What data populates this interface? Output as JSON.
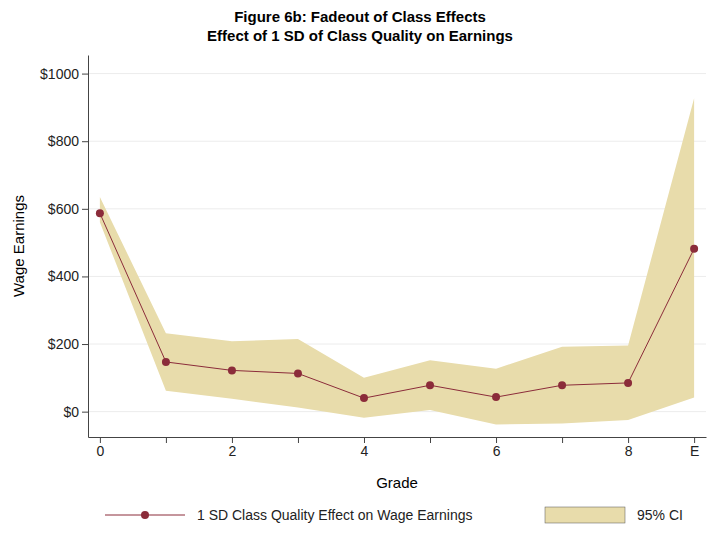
{
  "chart_data": {
    "type": "line",
    "title": "Figure 6b: Fadeout of Class Effects",
    "subtitle": "Effect of 1 SD of Class Quality on Earnings",
    "x_label": "Grade",
    "y_label": "Wage Earnings",
    "categories": [
      "0",
      null,
      "2",
      null,
      "4",
      null,
      "6",
      null,
      "8",
      "E"
    ],
    "series": [
      {
        "name": "1 SD Class Quality Effect on Wage Earnings",
        "color": "#8b2c3a",
        "marker": "circle",
        "line_style": "solid",
        "values": [
          587,
          147,
          122,
          113,
          40,
          78,
          43,
          78,
          85,
          482
        ]
      },
      {
        "name": "95% CI",
        "type": "band",
        "color": "#e8dcab",
        "lower": [
          560,
          62,
          38,
          12,
          -18,
          5,
          -38,
          -35,
          -25,
          42
        ],
        "upper": [
          635,
          232,
          208,
          215,
          100,
          152,
          127,
          192,
          196,
          927
        ]
      }
    ],
    "ylim": [
      -75,
      1055
    ],
    "yticks": [
      {
        "value": 0,
        "label": "$0"
      },
      {
        "value": 200,
        "label": "$200"
      },
      {
        "value": 400,
        "label": "$400"
      },
      {
        "value": 600,
        "label": "$600"
      },
      {
        "value": 800,
        "label": "$800"
      },
      {
        "value": 1000,
        "label": "$1000"
      }
    ],
    "grid": true,
    "legend": "bottom"
  }
}
